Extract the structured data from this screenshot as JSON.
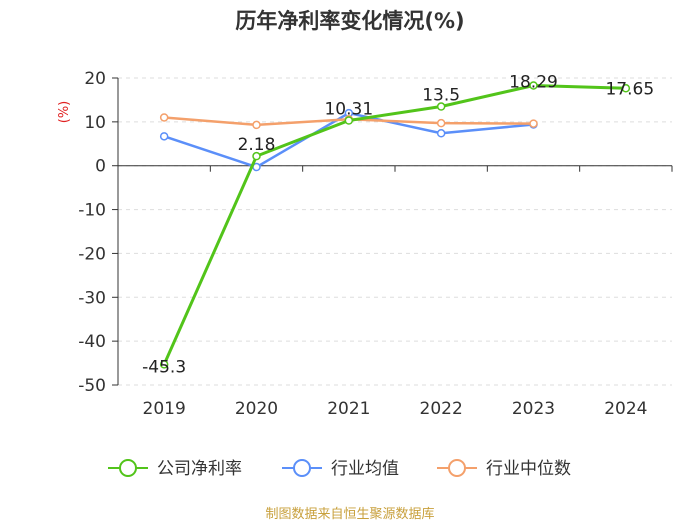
{
  "chart_data": {
    "type": "line",
    "title": "历年净利率变化情况(%)",
    "ylabel": "(%)",
    "xlabel": "",
    "categories": [
      "2019",
      "2020",
      "2021",
      "2022",
      "2023",
      "2024"
    ],
    "ylim": [
      -50,
      20
    ],
    "yticks": [
      20,
      10,
      0,
      -10,
      -20,
      -30,
      -40,
      -50
    ],
    "grid": true,
    "legend_position": "bottom",
    "series": [
      {
        "name": "公司净利率",
        "color": "#52c41a",
        "values": [
          -45.3,
          2.18,
          10.31,
          13.5,
          18.29,
          17.65
        ],
        "labels": [
          "-45.3",
          "2.18",
          "10.31",
          "13.5",
          "18.29",
          "17.65"
        ]
      },
      {
        "name": "行业均值",
        "color": "#5b8ff9",
        "values": [
          6.7,
          -0.3,
          12.0,
          7.4,
          9.4,
          null
        ]
      },
      {
        "name": "行业中位数",
        "color": "#f4a06b",
        "values": [
          11.0,
          9.3,
          10.6,
          9.7,
          9.6,
          null
        ]
      }
    ]
  },
  "source": "制图数据来自恒生聚源数据库",
  "colors": {
    "title_red": "#e02020",
    "source_gold": "#c8a03c",
    "grid": "#dddddd"
  }
}
